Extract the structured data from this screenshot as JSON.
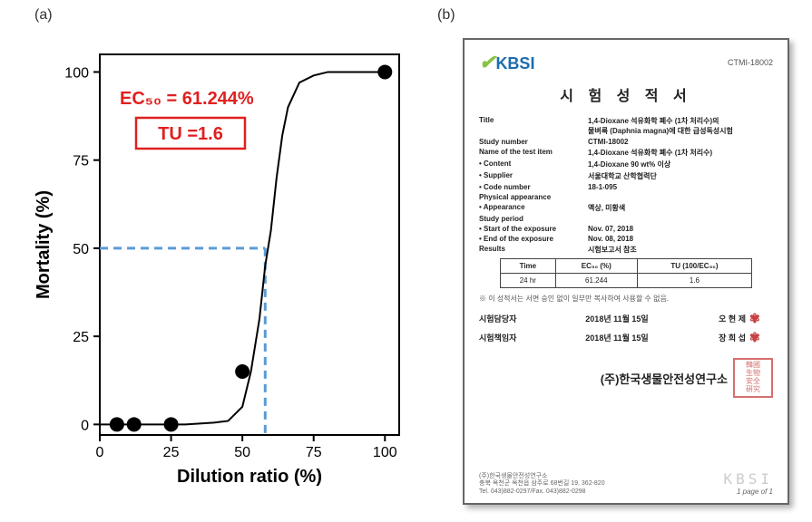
{
  "panels": {
    "a": "(a)",
    "b": "(b)"
  },
  "chart": {
    "type": "scatter-sigmoid",
    "x": [
      6,
      12,
      25,
      50,
      100
    ],
    "y": [
      0,
      0,
      0,
      15,
      100
    ],
    "curve_x": [
      0,
      10,
      20,
      30,
      40,
      45,
      50,
      53,
      56,
      58,
      60,
      62,
      64,
      66,
      70,
      75,
      80,
      90,
      100
    ],
    "curve_y": [
      0,
      0,
      0,
      0,
      0.5,
      1,
      5,
      15,
      30,
      45,
      55,
      70,
      82,
      90,
      97,
      99,
      100,
      100,
      100
    ],
    "xlabel": "Dilution ratio (%)",
    "ylabel": "Mortality (%)",
    "xlim": [
      0,
      105
    ],
    "ylim": [
      -3,
      105
    ],
    "xticks": [
      0,
      25,
      50,
      75,
      100
    ],
    "yticks": [
      0,
      25,
      50,
      75,
      100
    ],
    "ec50_drop": [
      58,
      50
    ],
    "marker_color": "#000000",
    "marker_radius": 8,
    "curve_color": "#000000",
    "curve_width": 2,
    "axis_color": "#000000",
    "axis_width": 2,
    "grid": false,
    "label_fontsize": 20,
    "tick_fontsize": 16,
    "ec50_text": "EC₅₀ = 61.244%",
    "tu_text": "TU =1.6",
    "annot_color": "#e02020",
    "annot_fontsize": 20,
    "annot_box_border": "#e02020",
    "dash_color": "#5b9bd5",
    "dash_width": 3,
    "dash_pattern": "9 6",
    "bg": "#ffffff"
  },
  "doc": {
    "logo_text": "KBSI",
    "logo_green": "#87c440",
    "logo_blue": "#1a6cb0",
    "top_code": "CTMI-18002",
    "title": "시 험 성 적 서",
    "rows": [
      {
        "l": "Title",
        "r": "1,4-Dioxane 석유화학 폐수 (1차 처리수)의\n물벼룩 (Daphnia magna)에 대한 급성독성시험"
      },
      {
        "l": "Study number",
        "r": "CTMI-18002"
      },
      {
        "l": "Name of the test item",
        "r": "1,4-Dioxane 석유화학 폐수 (1차 처리수)"
      },
      {
        "l": "• Content",
        "r": "1,4-Dioxane 90 wt% 이상"
      },
      {
        "l": "• Supplier",
        "r": "서울대학교 산학협력단"
      },
      {
        "l": "• Code number",
        "r": "18-1-095"
      },
      {
        "l": "Physical appearance",
        "r": ""
      },
      {
        "l": "• Appearance",
        "r": "액상, 미황색"
      },
      {
        "l": "Study period",
        "r": ""
      },
      {
        "l": "• Start of the exposure",
        "r": "Nov. 07, 2018"
      },
      {
        "l": "• End of the exposure",
        "r": "Nov. 08, 2018"
      },
      {
        "l": "Results",
        "r": "시험보고서 참조"
      }
    ],
    "tbl_head": [
      "Time",
      "EC₅₀ (%)",
      "TU (100/EC₅₀)"
    ],
    "tbl_row": [
      "24 hr",
      "61.244",
      "1.6"
    ],
    "note": "※ 이 성적서는 서면 승인 없이 일부만 복사하여 사용할 수 없음.",
    "sigs": [
      {
        "role": "시험담당자",
        "date": "2018년   11월   15일",
        "name": "오 현 제"
      },
      {
        "role": "시험책임자",
        "date": "2018년   11월   15일",
        "name": "장 희 섭"
      }
    ],
    "org": "(주)한국생물안전성연구소",
    "addr": "(주)한국생물안전성연구소\n충북 옥천군 옥천읍 삼주로 68번길 19, 362-820\nTel. 043)882-0297/Fax. 043)882-0298",
    "pager": "1 page of 1",
    "body_font": 12,
    "label_color": "#333333",
    "text_color": "#222222",
    "border": "#666666",
    "shadow": "#888888",
    "stamp_color": "#c84040",
    "watermark": "KBSI"
  }
}
